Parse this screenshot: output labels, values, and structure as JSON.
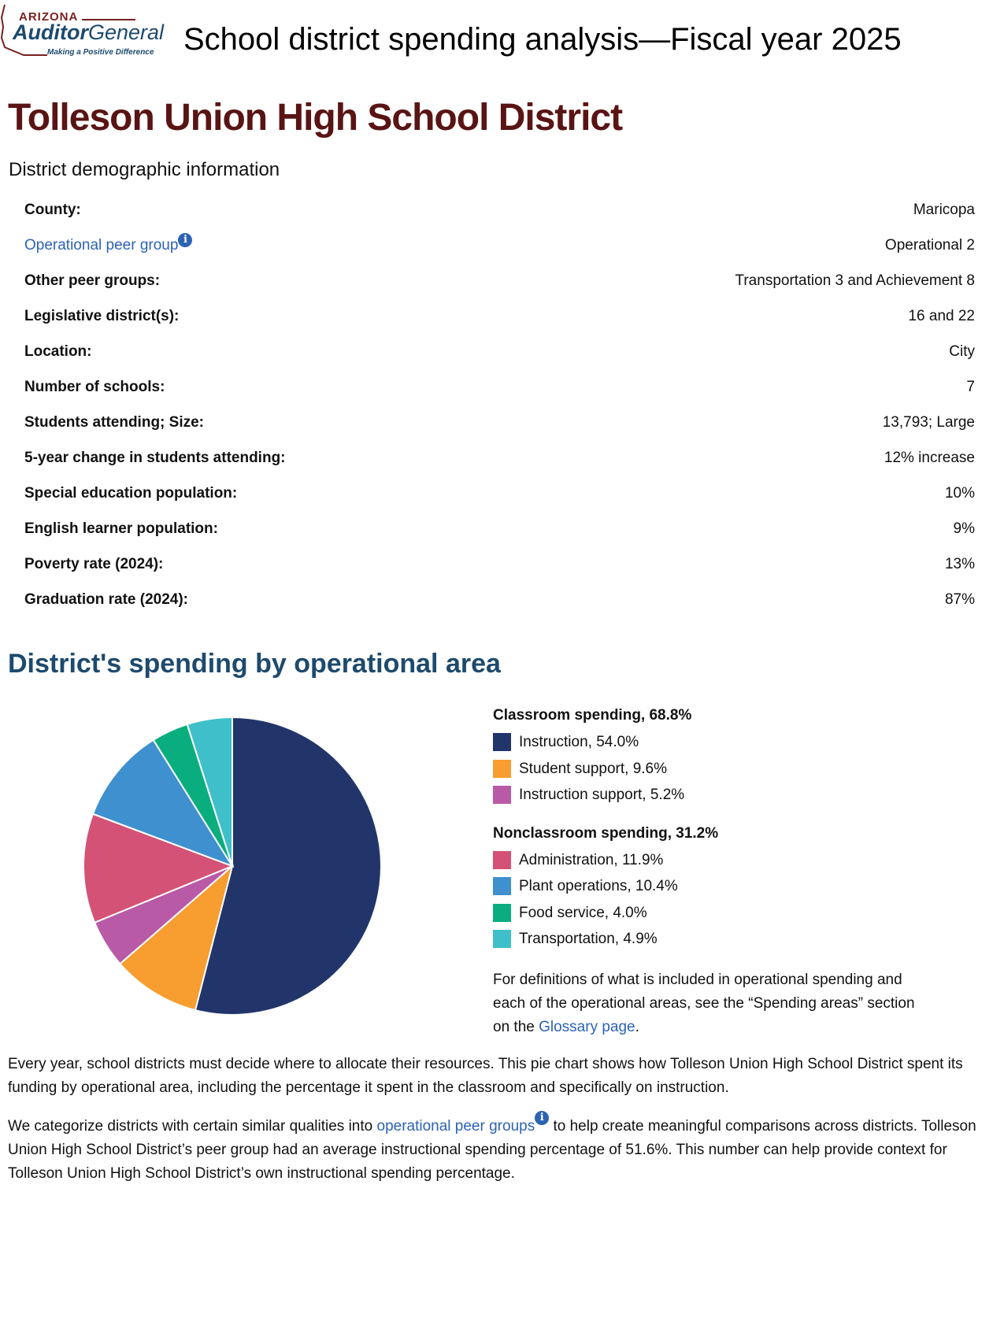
{
  "header": {
    "logo_text": "ARIZONA Auditor General Making a Positive Difference",
    "title": "School district spending analysis—Fiscal year 2025"
  },
  "district_name": "Tolleson Union High School District",
  "demographics": {
    "heading": "District demographic information",
    "rows": [
      {
        "label": "County:",
        "value": "Maricopa"
      },
      {
        "label": "Operational peer group",
        "value": "Operational 2"
      },
      {
        "label": "Other peer groups:",
        "value": "Transportation 3 and Achievement 8"
      },
      {
        "label": "Legislative district(s):",
        "value": "16 and 22"
      },
      {
        "label": "Location:",
        "value": "City"
      },
      {
        "label": "Number of schools:",
        "value": "7"
      },
      {
        "label": "Students attending; Size:",
        "value": "13,793; Large"
      },
      {
        "label": "5-year change in students attending:",
        "value": "12% increase"
      },
      {
        "label": "Special education population:",
        "value": "10%"
      },
      {
        "label": "English learner population:",
        "value": "9%"
      },
      {
        "label": "Poverty rate (2024):",
        "value": "13%"
      },
      {
        "label": "Graduation rate (2024):",
        "value": "87%"
      }
    ]
  },
  "spending": {
    "heading": "District's spending by operational area",
    "definitions_text": "For definitions of what is included in operational spending and each of the operational areas, see the “Spending areas” section on the ",
    "glossary_link": "Glossary page",
    "period": "."
  },
  "chart_data": {
    "type": "pie",
    "groups": [
      {
        "title": "Classroom spending, 68.8%",
        "items": [
          {
            "label": "Instruction, 54.0%",
            "name": "Instruction",
            "value": 54.0,
            "color": "#22356b"
          },
          {
            "label": "Student support, 9.6%",
            "name": "Student support",
            "value": 9.6,
            "color": "#f89d2f"
          },
          {
            "label": "Instruction support, 5.2%",
            "name": "Instruction support",
            "value": 5.2,
            "color": "#b95aa6"
          }
        ]
      },
      {
        "title": "Nonclassroom spending, 31.2%",
        "items": [
          {
            "label": "Administration, 11.9%",
            "name": "Administration",
            "value": 11.9,
            "color": "#d45275"
          },
          {
            "label": "Plant operations, 10.4%",
            "name": "Plant operations",
            "value": 10.4,
            "color": "#3e90cf"
          },
          {
            "label": "Food service, 4.0%",
            "name": "Food service",
            "value": 4.0,
            "color": "#0aae7e"
          },
          {
            "label": "Transportation, 4.9%",
            "name": "Transportation",
            "value": 4.9,
            "color": "#3fbfc9"
          }
        ]
      }
    ],
    "legend": "right"
  },
  "paragraphs": {
    "p1": "Every year, school districts must decide where to allocate their resources. This pie chart shows how Tolleson Union High School District spent its funding by operational area, including the percentage it spent in the classroom and specifically on instruction.",
    "p2_before": "We categorize districts with certain similar qualities into ",
    "p2_link": "operational peer groups",
    "p2_after": " to help create meaningful comparisons across districts. Tolleson Union High School District’s peer group had an average instructional spending percentage of 51.6%. This number can help provide context for Tolleson Union High School District’s own instructional spending percentage."
  },
  "info_icon": "i"
}
